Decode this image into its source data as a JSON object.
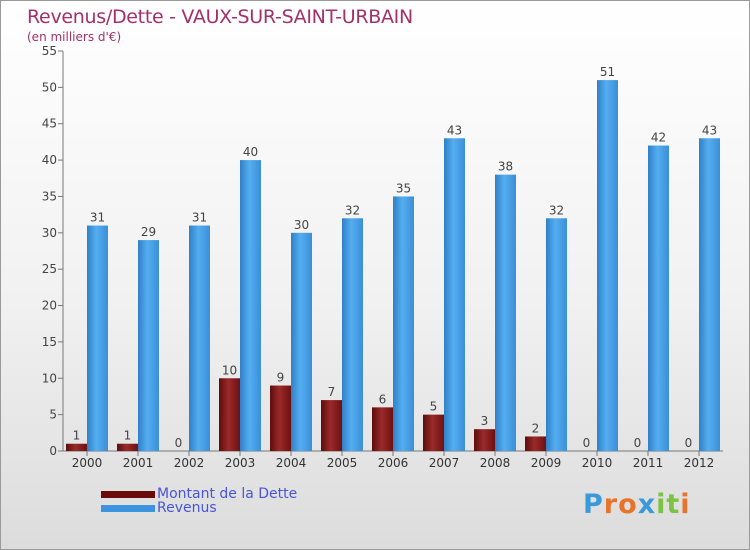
{
  "title": "Revenus/Dette - VAUX-SUR-SAINT-URBAIN",
  "subtitle": "(en milliers d'€)",
  "colors": {
    "title": "#a4306a",
    "dette": "#7a1515",
    "revenus": "#3d94de",
    "legend_text": "#4a55d6",
    "axis": "#666666"
  },
  "legend": [
    {
      "label": "Montant de la Dette",
      "color": "#6a0a0a"
    },
    {
      "label": "Revenus",
      "color": "#3d94de"
    }
  ],
  "logo": {
    "text": "Proxiti",
    "letter_colors": [
      "#3a9ad9",
      "#e8732b",
      "#e8732b",
      "#3a9ad9",
      "#7cc243",
      "#7cc243",
      "#e8732b"
    ]
  },
  "chart_data": {
    "type": "bar",
    "title": "Revenus/Dette - VAUX-SUR-SAINT-URBAIN",
    "subtitle": "(en milliers d'€)",
    "categories": [
      "2000",
      "2001",
      "2002",
      "2003",
      "2004",
      "2005",
      "2006",
      "2007",
      "2008",
      "2009",
      "2010",
      "2011",
      "2012"
    ],
    "series": [
      {
        "name": "Montant de la Dette",
        "values": [
          1,
          1,
          0,
          10,
          9,
          7,
          6,
          5,
          3,
          2,
          0,
          0,
          0
        ]
      },
      {
        "name": "Revenus",
        "values": [
          31,
          29,
          31,
          40,
          30,
          32,
          35,
          43,
          38,
          32,
          51,
          42,
          43
        ]
      }
    ],
    "ylim": [
      0,
      55
    ],
    "yticks": [
      0,
      5,
      10,
      15,
      20,
      25,
      30,
      35,
      40,
      45,
      50,
      55
    ],
    "grid": false,
    "legend_position": "bottom-left"
  }
}
